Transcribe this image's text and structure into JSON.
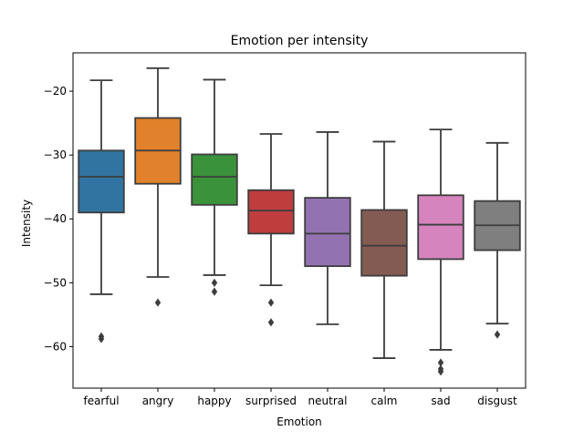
{
  "chart_data": {
    "type": "box",
    "title": "Emotion per intensity",
    "xlabel": "Emotion",
    "ylabel": "Intensity",
    "ylim": [
      -66.5,
      -14
    ],
    "yticks": [
      -20,
      -30,
      -40,
      -50,
      -60
    ],
    "ytick_labels": [
      "−20",
      "−30",
      "−40",
      "−50",
      "−60"
    ],
    "grid": false,
    "categories": [
      "fearful",
      "angry",
      "happy",
      "surprised",
      "neutral",
      "calm",
      "sad",
      "disgust"
    ],
    "colors": [
      "#3274a1",
      "#e1812c",
      "#3a923a",
      "#c03d3e",
      "#9372b2",
      "#845b53",
      "#d684bd",
      "#7f7f7f"
    ],
    "boxes": [
      {
        "category": "fearful",
        "whisker_low": -51.8,
        "q1": -39.0,
        "median": -33.4,
        "q3": -29.3,
        "whisker_high": -18.3,
        "outliers": [
          -58.4,
          -58.8
        ]
      },
      {
        "category": "angry",
        "whisker_low": -49.1,
        "q1": -34.5,
        "median": -29.3,
        "q3": -24.2,
        "whisker_high": -16.4,
        "outliers": [
          -53.1
        ]
      },
      {
        "category": "happy",
        "whisker_low": -48.8,
        "q1": -37.8,
        "median": -33.4,
        "q3": -29.9,
        "whisker_high": -18.2,
        "outliers": [
          -50.0,
          -51.4
        ]
      },
      {
        "category": "surprised",
        "whisker_low": -50.4,
        "q1": -42.3,
        "median": -38.7,
        "q3": -35.5,
        "whisker_high": -26.7,
        "outliers": [
          -53.1,
          -56.2
        ]
      },
      {
        "category": "neutral",
        "whisker_low": -56.5,
        "q1": -47.4,
        "median": -42.3,
        "q3": -36.7,
        "whisker_high": -26.4,
        "outliers": []
      },
      {
        "category": "calm",
        "whisker_low": -61.8,
        "q1": -48.9,
        "median": -44.2,
        "q3": -38.6,
        "whisker_high": -27.9,
        "outliers": []
      },
      {
        "category": "sad",
        "whisker_low": -60.5,
        "q1": -46.3,
        "median": -40.9,
        "q3": -36.3,
        "whisker_high": -26.0,
        "outliers": [
          -62.5,
          -63.5,
          -63.9
        ]
      },
      {
        "category": "disgust",
        "whisker_low": -56.4,
        "q1": -44.9,
        "median": -41.0,
        "q3": -37.2,
        "whisker_high": -28.1,
        "outliers": [
          -58.1
        ]
      }
    ]
  }
}
